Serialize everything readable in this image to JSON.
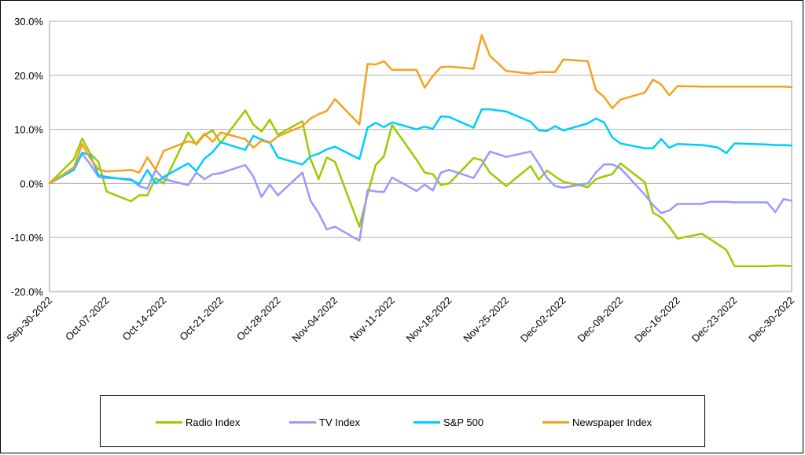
{
  "chart_data": {
    "type": "line",
    "title": "",
    "xlabel": "",
    "ylabel": "",
    "ylim": [
      -20,
      30
    ],
    "y_ticks": [
      "30.0%",
      "20.0%",
      "10.0%",
      "0.0%",
      "-10.0%",
      "-20.0%"
    ],
    "y_tick_values": [
      30,
      20,
      10,
      0,
      -10,
      -20
    ],
    "x_tick_labels": [
      "Sep-30-2022",
      "Oct-07-2022",
      "Oct-14-2022",
      "Oct-21-2022",
      "Oct-28-2022",
      "Nov-04-2022",
      "Nov-11-2022",
      "Nov-18-2022",
      "Nov-25-2022",
      "Dec-02-2022",
      "Dec-09-2022",
      "Dec-16-2022",
      "Dec-23-2022",
      "Dec-30-2022"
    ],
    "grid": "horizontal",
    "legend_position": "bottom",
    "x_dates": [
      "Sep-30-2022",
      "Oct-03-2022",
      "Oct-04-2022",
      "Oct-05-2022",
      "Oct-06-2022",
      "Oct-07-2022",
      "Oct-10-2022",
      "Oct-11-2022",
      "Oct-12-2022",
      "Oct-13-2022",
      "Oct-14-2022",
      "Oct-17-2022",
      "Oct-18-2022",
      "Oct-19-2022",
      "Oct-20-2022",
      "Oct-21-2022",
      "Oct-24-2022",
      "Oct-25-2022",
      "Oct-26-2022",
      "Oct-27-2022",
      "Oct-28-2022",
      "Oct-31-2022",
      "Nov-01-2022",
      "Nov-02-2022",
      "Nov-03-2022",
      "Nov-04-2022",
      "Nov-07-2022",
      "Nov-08-2022",
      "Nov-09-2022",
      "Nov-10-2022",
      "Nov-11-2022",
      "Nov-14-2022",
      "Nov-15-2022",
      "Nov-16-2022",
      "Nov-17-2022",
      "Nov-18-2022",
      "Nov-21-2022",
      "Nov-22-2022",
      "Nov-23-2022",
      "Nov-25-2022",
      "Nov-28-2022",
      "Nov-29-2022",
      "Nov-30-2022",
      "Dec-01-2022",
      "Dec-02-2022",
      "Dec-05-2022",
      "Dec-06-2022",
      "Dec-07-2022",
      "Dec-08-2022",
      "Dec-09-2022",
      "Dec-12-2022",
      "Dec-13-2022",
      "Dec-14-2022",
      "Dec-15-2022",
      "Dec-16-2022",
      "Dec-19-2022",
      "Dec-20-2022",
      "Dec-21-2022",
      "Dec-22-2022",
      "Dec-23-2022",
      "Dec-27-2022",
      "Dec-28-2022",
      "Dec-29-2022",
      "Dec-30-2022"
    ],
    "series": [
      {
        "name": "Radio Index",
        "color": "#99CC00",
        "values": [
          0.0,
          4.5,
          8.3,
          5.5,
          4.0,
          -1.5,
          -3.3,
          -2.2,
          -2.2,
          1.0,
          0.0,
          9.4,
          7.2,
          9.0,
          9.8,
          7.5,
          13.5,
          10.9,
          9.6,
          11.8,
          9.0,
          11.5,
          4.5,
          0.8,
          4.8,
          4.0,
          -8.0,
          -2.0,
          3.4,
          5.0,
          10.8,
          4.4,
          2.0,
          1.7,
          -0.3,
          0.0,
          4.7,
          4.3,
          2.0,
          -0.5,
          3.2,
          0.7,
          2.4,
          1.3,
          0.3,
          -0.7,
          0.8,
          1.3,
          1.7,
          3.7,
          0.2,
          -5.4,
          -6.3,
          -8.0,
          -10.2,
          -9.3,
          -10.3,
          -11.3,
          -12.3,
          -15.3,
          -15.3,
          -15.2,
          -15.2,
          -15.3
        ]
      },
      {
        "name": "TV Index",
        "color": "#9999FF",
        "values": [
          0.0,
          2.7,
          5.5,
          3.5,
          1.2,
          1.0,
          0.8,
          -0.5,
          -1.0,
          2.5,
          0.8,
          -0.3,
          2.0,
          0.8,
          1.7,
          1.9,
          3.4,
          1.3,
          -2.5,
          -0.2,
          -2.2,
          2.0,
          -3.2,
          -5.5,
          -8.5,
          -8.0,
          -10.6,
          -1.2,
          -1.5,
          -1.6,
          1.1,
          -1.4,
          -0.2,
          -1.3,
          2.0,
          2.5,
          1.0,
          3.4,
          5.9,
          4.9,
          5.9,
          3.6,
          1.0,
          -0.5,
          -0.8,
          0.0,
          2.0,
          3.5,
          3.5,
          2.8,
          -2.1,
          -4.0,
          -5.5,
          -5.0,
          -3.8,
          -3.8,
          -3.4,
          -3.4,
          -3.4,
          -3.5,
          -3.5,
          -5.3,
          -2.9,
          -3.2
        ]
      },
      {
        "name": "S&P 500",
        "color": "#00CCFF",
        "values": [
          0.0,
          2.5,
          5.7,
          5.2,
          1.5,
          1.2,
          0.6,
          -0.1,
          2.5,
          0.0,
          1.2,
          3.7,
          2.3,
          4.6,
          5.8,
          7.6,
          6.2,
          8.8,
          8.1,
          7.6,
          4.8,
          3.5,
          5.0,
          5.5,
          6.3,
          6.8,
          4.5,
          10.3,
          11.2,
          10.4,
          11.3,
          10.0,
          10.5,
          10.1,
          12.4,
          12.3,
          10.3,
          13.7,
          13.7,
          13.3,
          11.4,
          9.8,
          9.7,
          10.6,
          9.8,
          11.1,
          12.0,
          11.3,
          8.5,
          7.4,
          6.5,
          6.5,
          8.2,
          6.6,
          7.3,
          7.1,
          6.9,
          6.6,
          5.6,
          7.4,
          7.2,
          7.1,
          7.1,
          7.0
        ]
      },
      {
        "name": "Newspaper Index",
        "color": "#F7A01E",
        "values": [
          0.0,
          3.0,
          7.3,
          4.6,
          2.6,
          2.2,
          2.5,
          2.0,
          4.8,
          2.6,
          6.0,
          7.8,
          7.4,
          9.2,
          7.7,
          9.4,
          8.2,
          6.6,
          7.9,
          7.5,
          8.7,
          10.6,
          12.0,
          12.8,
          13.4,
          15.6,
          10.9,
          22.1,
          22.0,
          22.6,
          21.0,
          21.0,
          17.7,
          19.9,
          21.5,
          21.6,
          21.2,
          27.4,
          23.6,
          20.8,
          20.3,
          20.6,
          20.6,
          20.6,
          22.9,
          22.6,
          17.3,
          16.0,
          13.9,
          15.5,
          16.8,
          19.2,
          18.3,
          16.3,
          18.0,
          17.9,
          17.9,
          17.9,
          17.9,
          17.9,
          17.9,
          17.9,
          17.9,
          17.8
        ]
      }
    ]
  }
}
